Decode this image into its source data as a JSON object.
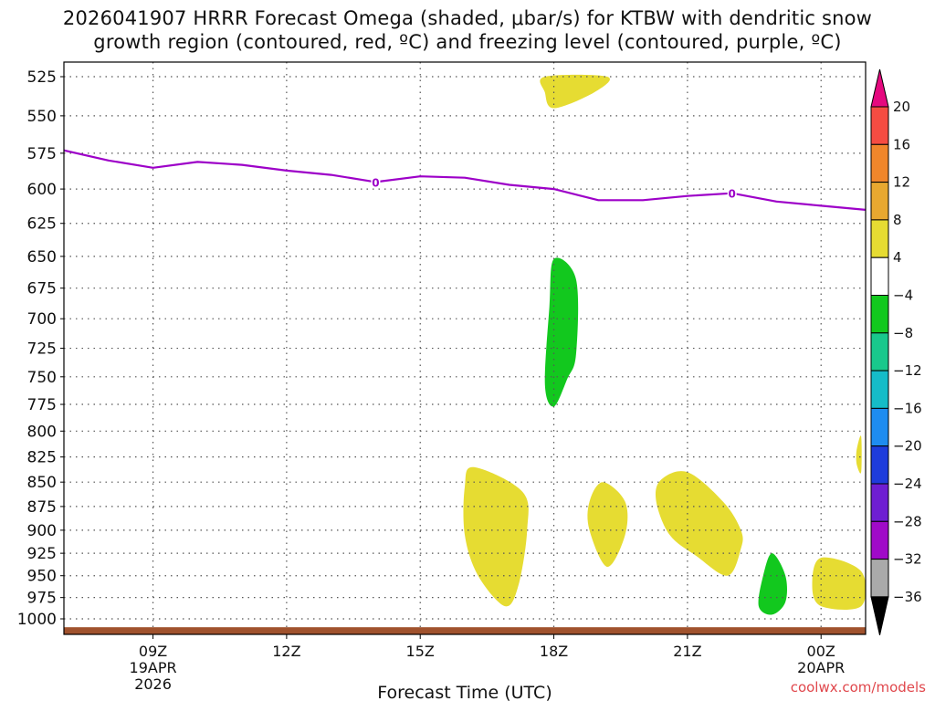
{
  "title": "2026041907 HRRR Forecast Omega (shaded, μbar/s) for KTBW with dendritic snow",
  "subtitle": "growth region (contoured, red, ºC) and freezing level (contoured, purple, ºC)",
  "credit": "coolwx.com/models",
  "chart_data": {
    "type": "time-height cross section",
    "title": "2026041907 HRRR Forecast Omega (shaded, μbar/s) for KTBW with dendritic snow growth region (contoured, red, ºC) and freezing level (contoured, purple, ºC)",
    "xlabel": "Forecast Time (UTC)",
    "xlim": [
      7,
      25
    ],
    "y_scale": "log-pressure (inverted)",
    "ylim": [
      1000,
      525
    ],
    "y_ticks": [
      "525",
      "550",
      "575",
      "600",
      "625",
      "650",
      "675",
      "700",
      "725",
      "750",
      "775",
      "800",
      "825",
      "850",
      "875",
      "900",
      "925",
      "950",
      "975",
      "1000"
    ],
    "y_tick_values": [
      525,
      550,
      575,
      600,
      625,
      650,
      675,
      700,
      725,
      750,
      775,
      800,
      825,
      850,
      875,
      900,
      925,
      950,
      975,
      1000
    ],
    "x_ticks": [
      {
        "x": 9,
        "label": "09Z",
        "date": "19APR",
        "year": "2026"
      },
      {
        "x": 12,
        "label": "12Z"
      },
      {
        "x": 15,
        "label": "15Z"
      },
      {
        "x": 18,
        "label": "18Z"
      },
      {
        "x": 21,
        "label": "21Z"
      },
      {
        "x": 24,
        "label": "00Z",
        "date": "20APR"
      }
    ],
    "grid": true,
    "freezing_level": {
      "color": "#9d00c8",
      "contour_label": "0",
      "label_points": [
        [
          14,
          595
        ],
        [
          22,
          603
        ]
      ],
      "points": [
        [
          7,
          573
        ],
        [
          8,
          580
        ],
        [
          9,
          585
        ],
        [
          10,
          581
        ],
        [
          11,
          583
        ],
        [
          12,
          587
        ],
        [
          13,
          590
        ],
        [
          14,
          595
        ],
        [
          15,
          591
        ],
        [
          16,
          592
        ],
        [
          17,
          597
        ],
        [
          18,
          600
        ],
        [
          19,
          608
        ],
        [
          20,
          608
        ],
        [
          21,
          605
        ],
        [
          22,
          603
        ],
        [
          23,
          609
        ],
        [
          24,
          612
        ],
        [
          25,
          615
        ]
      ]
    },
    "terrain": {
      "color": "#a0522d",
      "pressure_top": 1010
    },
    "colorbar": {
      "ticks": [
        "20",
        "16",
        "12",
        "8",
        "4",
        "−4",
        "−8",
        "−12",
        "−16",
        "−20",
        "−24",
        "−28",
        "−32",
        "−36"
      ],
      "bins": [
        {
          "range": [
            20,
            100
          ],
          "color": "#e5097f"
        },
        {
          "range": [
            16,
            20
          ],
          "color": "#f54c42"
        },
        {
          "range": [
            12,
            16
          ],
          "color": "#f0862b"
        },
        {
          "range": [
            8,
            12
          ],
          "color": "#e8a830"
        },
        {
          "range": [
            4,
            8
          ],
          "color": "#e6dc32"
        },
        {
          "range": [
            -4,
            4
          ],
          "color": "#ffffff"
        },
        {
          "range": [
            -8,
            -4
          ],
          "color": "#12c81e"
        },
        {
          "range": [
            -12,
            -8
          ],
          "color": "#19c88c"
        },
        {
          "range": [
            -16,
            -12
          ],
          "color": "#15bcc8"
        },
        {
          "range": [
            -20,
            -16
          ],
          "color": "#1e8cf0"
        },
        {
          "range": [
            -24,
            -20
          ],
          "color": "#1e3cdc"
        },
        {
          "range": [
            -28,
            -24
          ],
          "color": "#6e1ed2"
        },
        {
          "range": [
            -32,
            -28
          ],
          "color": "#a00ac8"
        },
        {
          "range": [
            -36,
            -32
          ],
          "color": "#aaaaaa"
        },
        {
          "range": [
            -100,
            -36
          ],
          "color": "#000000"
        }
      ]
    },
    "omega_regions": [
      {
        "bin": "4 to 8",
        "color": "#e6dc32",
        "points": [
          [
            17.8,
            525
          ],
          [
            19.2,
            525
          ],
          [
            18.9,
            535
          ],
          [
            18,
            545
          ],
          [
            17.8,
            535
          ]
        ]
      },
      {
        "bin": "-4 to -8",
        "color": "#12c81e",
        "points": [
          [
            18,
            652
          ],
          [
            18.5,
            668
          ],
          [
            18.5,
            730
          ],
          [
            18.3,
            752
          ],
          [
            18,
            777
          ],
          [
            17.8,
            757
          ],
          [
            17.9,
            690
          ]
        ]
      },
      {
        "bin": "4 to 8",
        "color": "#e6dc32",
        "points": [
          [
            16.2,
            835
          ],
          [
            17.3,
            860
          ],
          [
            17.4,
            900
          ],
          [
            17.2,
            962
          ],
          [
            16.9,
            985
          ],
          [
            16.3,
            950
          ],
          [
            16,
            905
          ],
          [
            16,
            855
          ]
        ]
      },
      {
        "bin": "4 to 8",
        "color": "#e6dc32",
        "points": [
          [
            19.1,
            850
          ],
          [
            19.6,
            870
          ],
          [
            19.6,
            905
          ],
          [
            19.2,
            940
          ],
          [
            18.8,
            900
          ],
          [
            18.8,
            870
          ]
        ]
      },
      {
        "bin": "4 to 8",
        "color": "#e6dc32",
        "points": [
          [
            21,
            840
          ],
          [
            21.8,
            870
          ],
          [
            22.2,
            900
          ],
          [
            22.2,
            920
          ],
          [
            21.9,
            950
          ],
          [
            21.2,
            928
          ],
          [
            20.6,
            905
          ],
          [
            20.3,
            870
          ],
          [
            20.4,
            848
          ]
        ]
      },
      {
        "bin": "-4 to -8",
        "color": "#12c81e",
        "points": [
          [
            22.9,
            925
          ],
          [
            23.2,
            950
          ],
          [
            23.2,
            980
          ],
          [
            22.9,
            995
          ],
          [
            22.6,
            985
          ],
          [
            22.7,
            950
          ]
        ]
      },
      {
        "bin": "4 to 8",
        "color": "#e6dc32",
        "points": [
          [
            24,
            930
          ],
          [
            24.9,
            945
          ],
          [
            24.9,
            985
          ],
          [
            24,
            985
          ],
          [
            23.8,
            960
          ]
        ]
      },
      {
        "bin": "4 to 8",
        "color": "#e6dc32",
        "points": [
          [
            24.9,
            805
          ],
          [
            24.9,
            840
          ],
          [
            24.8,
            832
          ],
          [
            24.8,
            818
          ]
        ]
      }
    ]
  }
}
